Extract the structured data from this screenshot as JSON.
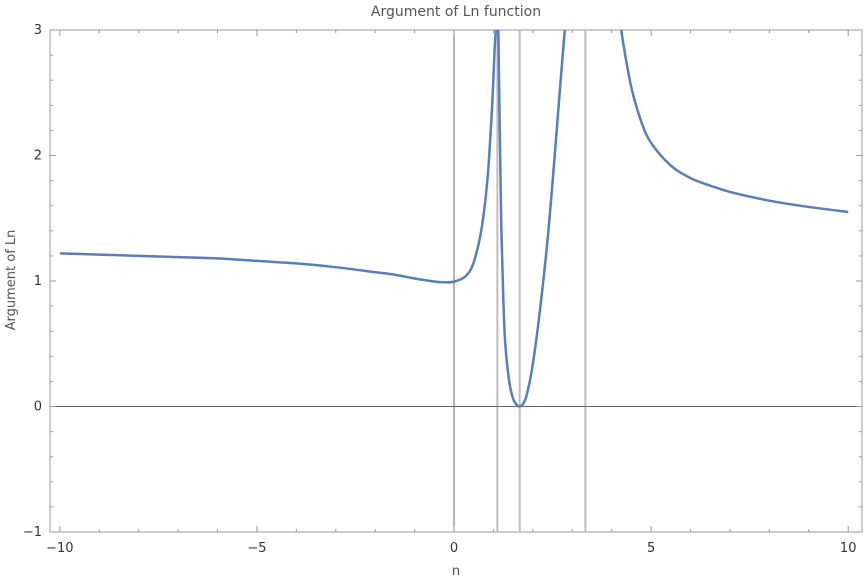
{
  "chart_data": {
    "type": "line",
    "title": "Argument of Ln function",
    "xlabel": "n",
    "ylabel": "Argument of Ln",
    "xlim": [
      -10.25,
      10.35
    ],
    "ylim": [
      -1,
      3
    ],
    "x_ticks": [
      -10,
      -5,
      0,
      5,
      10
    ],
    "x_tick_labels": [
      "−10",
      "−5",
      "0",
      "5",
      "10"
    ],
    "y_ticks": [
      -1,
      0,
      1,
      2,
      3
    ],
    "y_tick_labels": [
      "−1",
      "0",
      "1",
      "2",
      "3"
    ],
    "grid": false,
    "frame": true,
    "vertical_reference_lines": [
      1.1,
      1.666,
      3.333
    ],
    "series": [
      {
        "color": "#5b7db8",
        "segments": [
          {
            "x": [
              -10,
              -9,
              -8,
              -7,
              -6,
              -5,
              -4,
              -3,
              -2,
              -1.5,
              -1,
              -0.6,
              -0.3,
              0,
              0.3,
              0.5,
              0.7,
              0.85,
              0.95,
              1.0,
              1.03,
              1.06,
              1.08
            ],
            "y": [
              1.22,
              1.21,
              1.2,
              1.19,
              1.18,
              1.16,
              1.14,
              1.11,
              1.07,
              1.05,
              1.02,
              1.0,
              0.99,
              0.995,
              1.04,
              1.15,
              1.42,
              1.82,
              2.3,
              2.62,
              2.85,
              3.0,
              3.1
            ]
          },
          {
            "x": [
              1.12,
              1.16,
              1.2,
              1.25,
              1.3,
              1.4,
              1.5,
              1.6,
              1.666,
              1.75,
              1.85,
              2.0,
              2.2,
              2.4,
              2.6,
              2.7,
              2.8,
              2.85
            ],
            "y": [
              3.1,
              2.2,
              1.42,
              0.86,
              0.5,
              0.2,
              0.06,
              0.01,
              0.0,
              0.02,
              0.1,
              0.34,
              0.82,
              1.42,
              2.18,
              2.58,
              2.96,
              3.1
            ]
          },
          {
            "x": [
              4.2,
              4.3,
              4.5,
              4.75,
              5.0,
              5.5,
              6.0,
              6.5,
              7.0,
              8.0,
              9.0,
              10.0
            ],
            "y": [
              3.1,
              2.88,
              2.54,
              2.27,
              2.1,
              1.92,
              1.82,
              1.76,
              1.71,
              1.64,
              1.59,
              1.55
            ]
          }
        ]
      }
    ]
  }
}
